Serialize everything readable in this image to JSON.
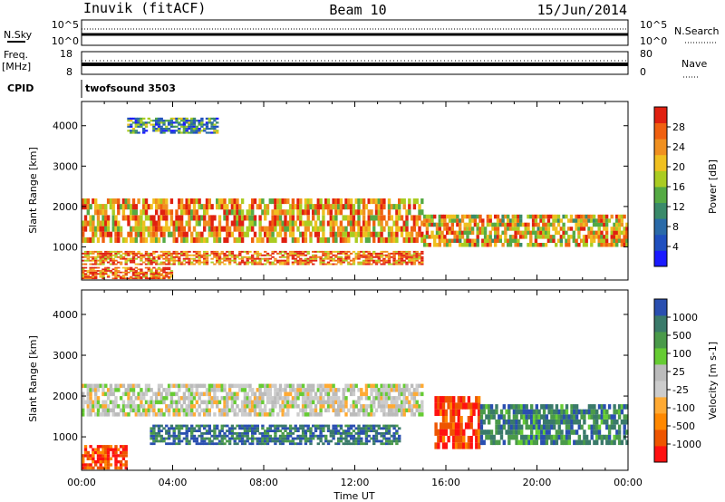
{
  "header": {
    "station": "Inuvik (fitACF)",
    "beam": "Beam 10",
    "date": "15/Jun/2014"
  },
  "strips": {
    "nsky_label": "N.Sky",
    "nsky_ticks": [
      "10^5",
      "10^0"
    ],
    "nsearch_label": "N.Search",
    "nsearch_ticks": [
      "10^5",
      "10^0"
    ],
    "freq_label": "Freq.",
    "freq_unit": "[MHz]",
    "freq_ticks": [
      "18",
      "8"
    ],
    "nave_label": "Nave",
    "nave_ticks": [
      "80",
      "0"
    ],
    "cpid_label": "CPID",
    "cpid_value": "twofsound 3503"
  },
  "colors": {
    "power_scale": [
      "#1a1aff",
      "#1f4fbf",
      "#2a6aa8",
      "#3a8a6a",
      "#55aa44",
      "#aacc22",
      "#f0c020",
      "#f09020",
      "#f06010",
      "#e02010"
    ],
    "velocity_scale": [
      "#2a4fb0",
      "#3a7a6a",
      "#4a9a4a",
      "#66cc33",
      "#bbbbbb",
      "#cccccc",
      "#ffaa33",
      "#ff8800",
      "#ee5500",
      "#ff1111"
    ]
  },
  "chart_data": [
    {
      "type": "heatmap",
      "name": "power",
      "xlabel": "",
      "ylabel": "Slant Range [km]",
      "xlim": [
        "00:00",
        "24:00"
      ],
      "ylim": [
        180,
        4600
      ],
      "y_ticks": [
        "1000",
        "2000",
        "3000",
        "4000"
      ],
      "colorbar_label": "Power [dB]",
      "colorbar_ticks": [
        "4",
        "8",
        "12",
        "16",
        "20",
        "24",
        "28"
      ],
      "colorbar_range": [
        0,
        30
      ],
      "bands": [
        {
          "t0": 0,
          "t1": 15,
          "r0": 1100,
          "r1": 2200,
          "value": 22
        },
        {
          "t0": 0,
          "t1": 15,
          "r0": 550,
          "r1": 900,
          "value": 24
        },
        {
          "t0": 0,
          "t1": 4,
          "r0": 200,
          "r1": 500,
          "value": 26
        },
        {
          "t0": 15,
          "t1": 24,
          "r0": 1000,
          "r1": 1800,
          "value": 20
        },
        {
          "t0": 2,
          "t1": 6,
          "r0": 3800,
          "r1": 4200,
          "value": 10
        }
      ]
    },
    {
      "type": "heatmap",
      "name": "velocity",
      "xlabel": "Time UT",
      "ylabel": "Slant Range [km]",
      "xlim": [
        "00:00",
        "24:00"
      ],
      "ylim": [
        180,
        4600
      ],
      "x_ticks": [
        "00:00",
        "04:00",
        "08:00",
        "12:00",
        "16:00",
        "20:00",
        "00:00"
      ],
      "y_ticks": [
        "1000",
        "2000",
        "3000",
        "4000"
      ],
      "colorbar_label": "Velocity [m s-1]",
      "colorbar_ticks": [
        "1000",
        "500",
        "100",
        "25",
        "-25",
        "-100",
        "-500",
        "-1000"
      ],
      "bands": [
        {
          "t0": 0,
          "t1": 15,
          "r0": 1500,
          "r1": 2300,
          "value": 0
        },
        {
          "t0": 3,
          "t1": 14,
          "r0": 800,
          "r1": 1300,
          "value": 200
        },
        {
          "t0": 0,
          "t1": 2,
          "r0": 200,
          "r1": 800,
          "value": -200
        },
        {
          "t0": 15.5,
          "t1": 17.5,
          "r0": 700,
          "r1": 2000,
          "value": -300
        },
        {
          "t0": 17.5,
          "t1": 24,
          "r0": 800,
          "r1": 1800,
          "value": 80
        }
      ]
    }
  ]
}
